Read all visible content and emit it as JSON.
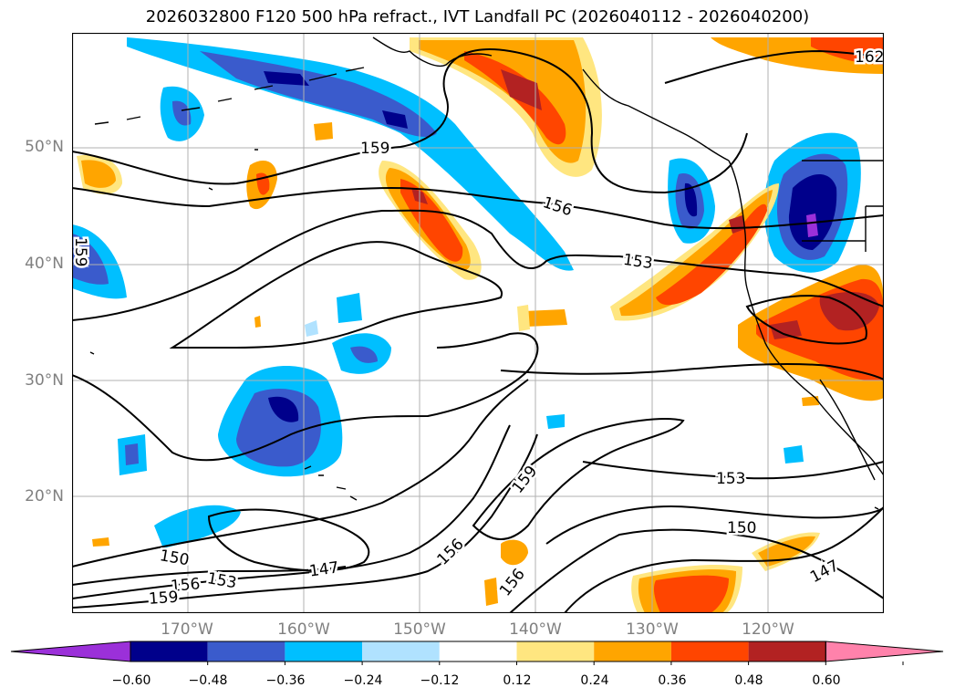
{
  "title": "2026032800 F120 500 hPa refract., IVT Landfall PC (2026040112 - 2026040200)",
  "lat_labels": [
    "50°N",
    "40°N",
    "30°N",
    "20°N"
  ],
  "lon_labels": [
    "170°W",
    "160°W",
    "150°W",
    "140°W",
    "130°W",
    "120°W"
  ],
  "contour_labels": [
    "159",
    "156",
    "153",
    "162",
    "159",
    "153",
    "150",
    "147",
    "159",
    "156",
    "156",
    "150",
    "153",
    "156",
    "159",
    "147"
  ],
  "colorbar": {
    "ticks": [
      "−0.60",
      "−0.48",
      "−0.36",
      "−0.24",
      "−0.12",
      "0.12",
      "0.24",
      "0.36",
      "0.48",
      "0.60"
    ],
    "colors": [
      "#9b30d9",
      "#00008b",
      "#3a5bcc",
      "#00bfff",
      "#b0e2ff",
      "#ffffff",
      "#ffe680",
      "#ffa500",
      "#ff4500",
      "#b22222",
      "#ff82ab"
    ]
  }
}
